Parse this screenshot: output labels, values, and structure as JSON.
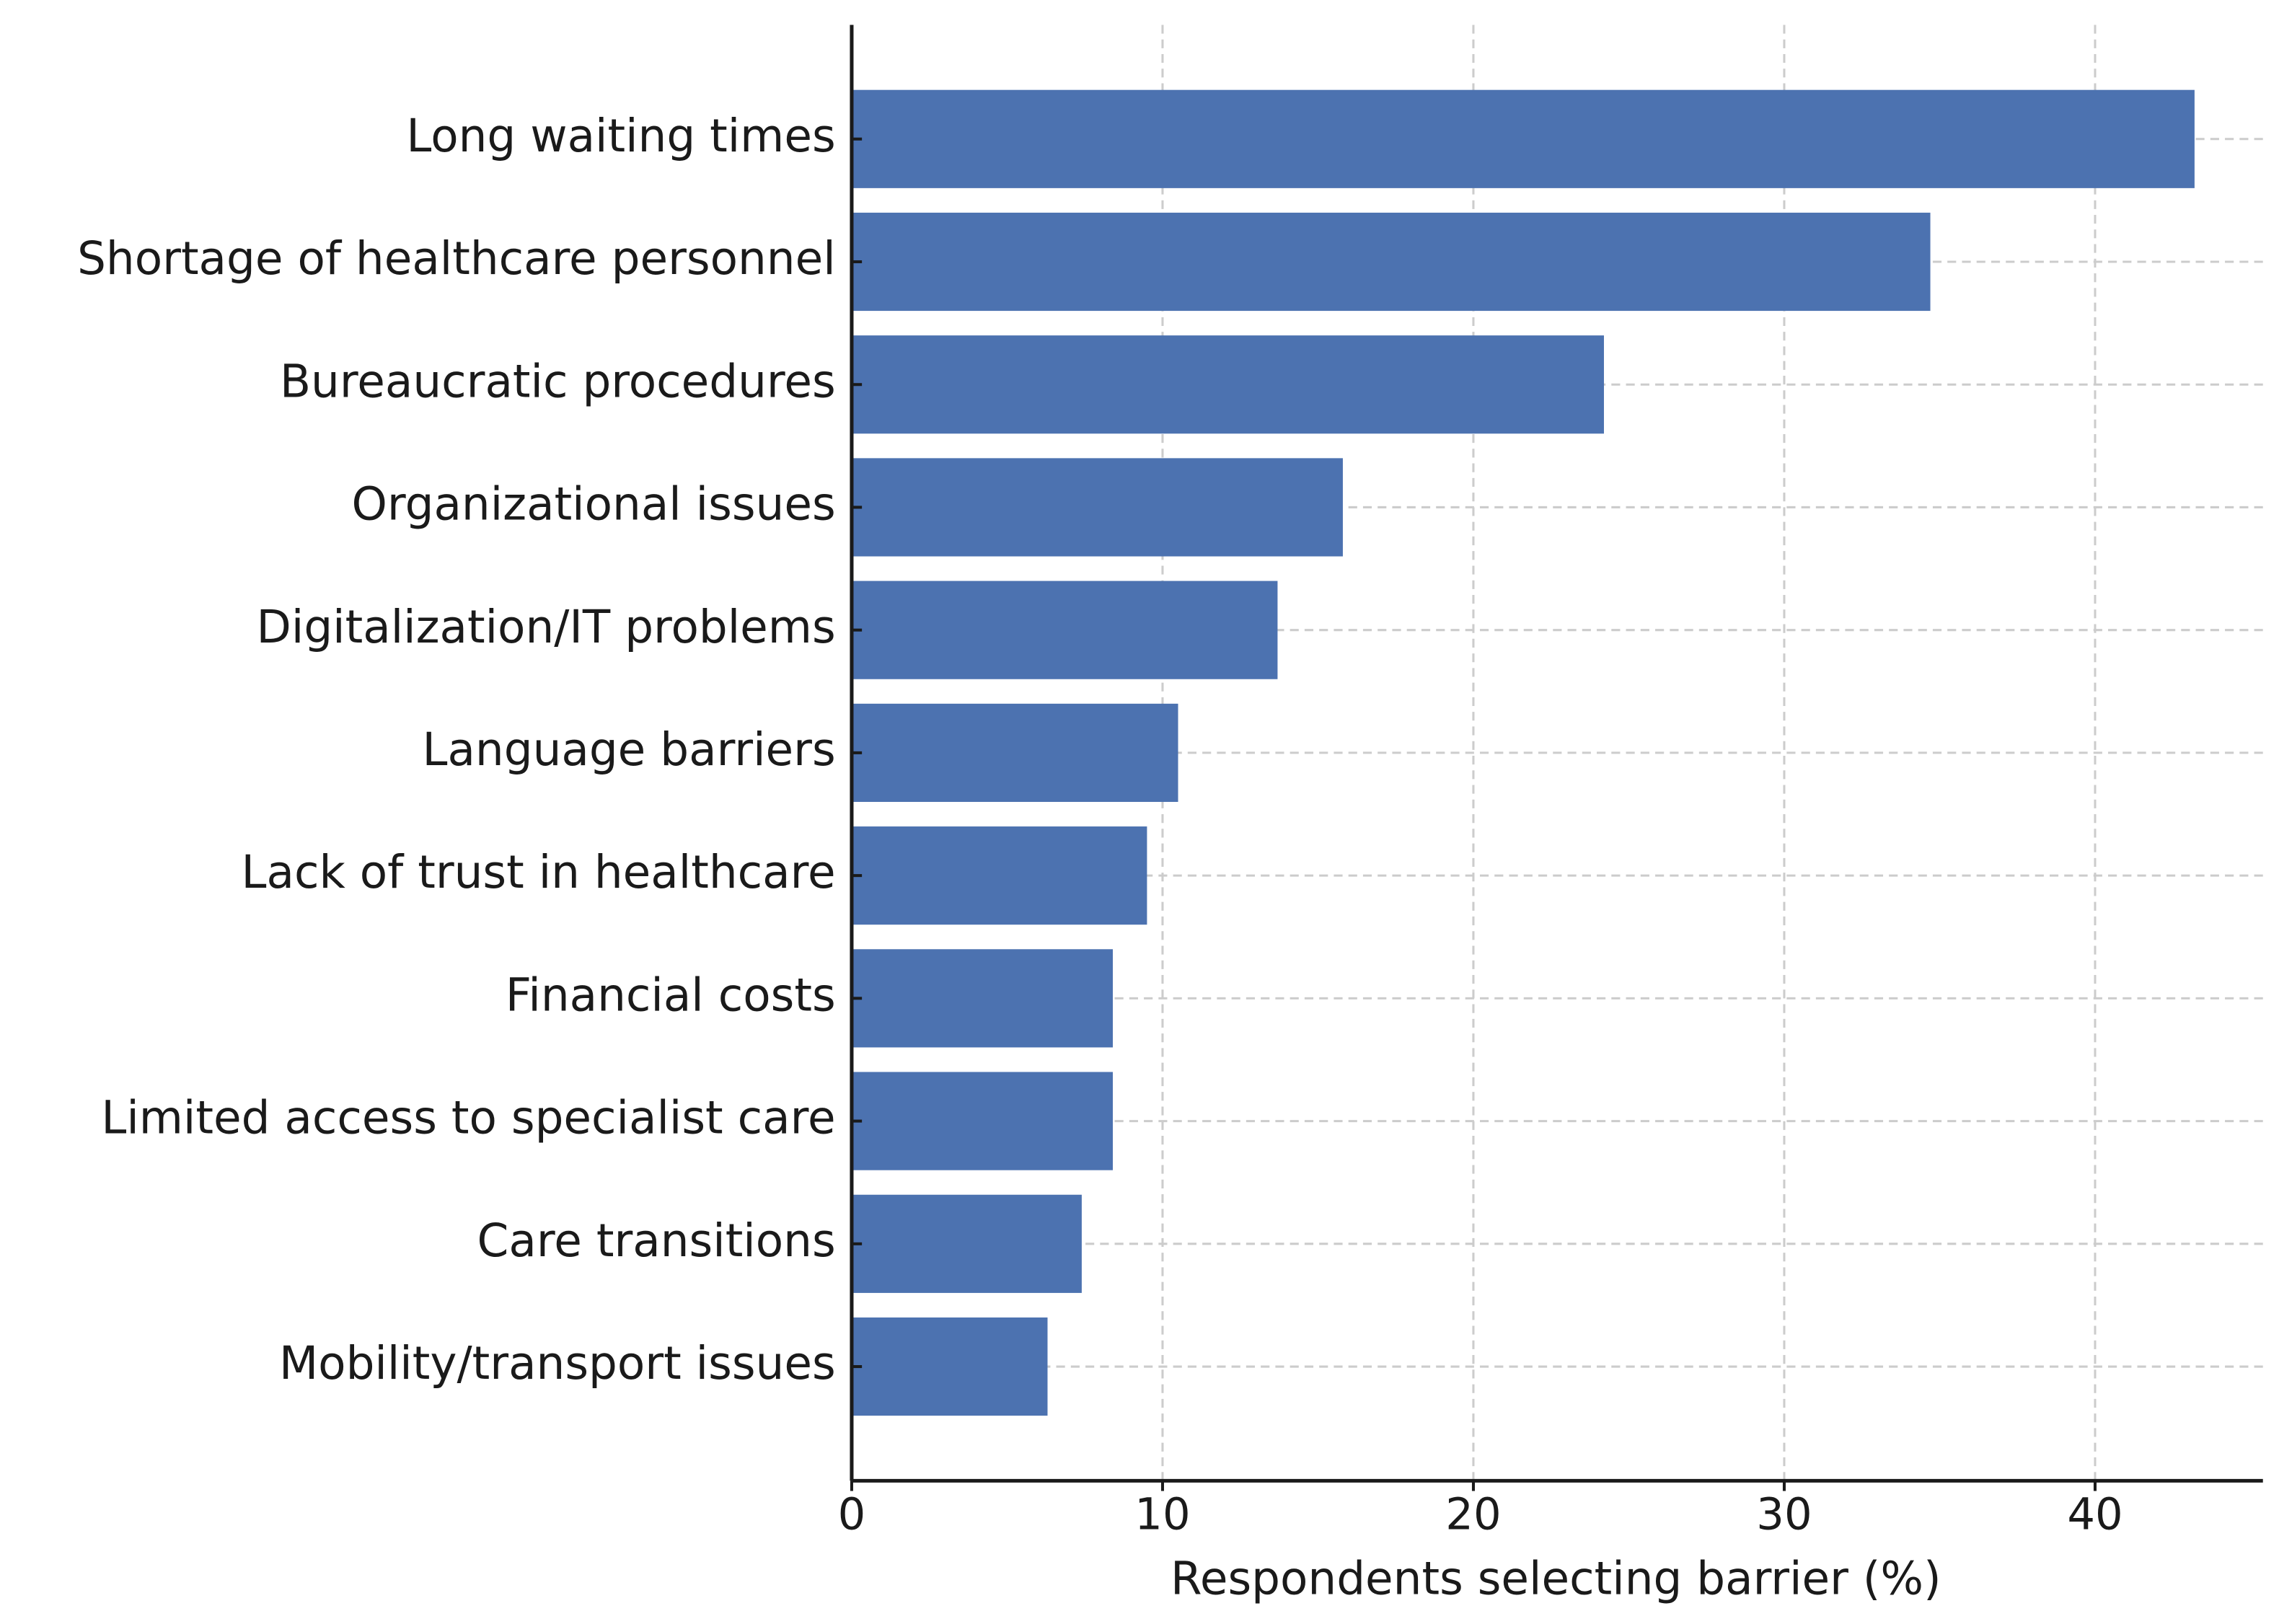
{
  "chart_data": {
    "type": "bar",
    "orientation": "horizontal",
    "x_label": "Respondents selecting barrier (%)",
    "categories": [
      "Long waiting times",
      "Shortage of healthcare personnel",
      "Bureaucratic procedures",
      "Organizational issues",
      "Digitalization/IT problems",
      "Language barriers",
      "Lack of trust in healthcare",
      "Financial costs",
      "Limited access to specialist care",
      "Care transitions",
      "Mobility/transport issues"
    ],
    "values": [
      43.2,
      34.7,
      24.2,
      15.8,
      13.7,
      10.5,
      9.5,
      8.4,
      8.4,
      7.4,
      6.3
    ],
    "color": "#4c72b0",
    "xlim": [
      0,
      45.4
    ],
    "xticks": [
      0,
      10,
      20,
      30,
      40
    ],
    "grid": true
  }
}
